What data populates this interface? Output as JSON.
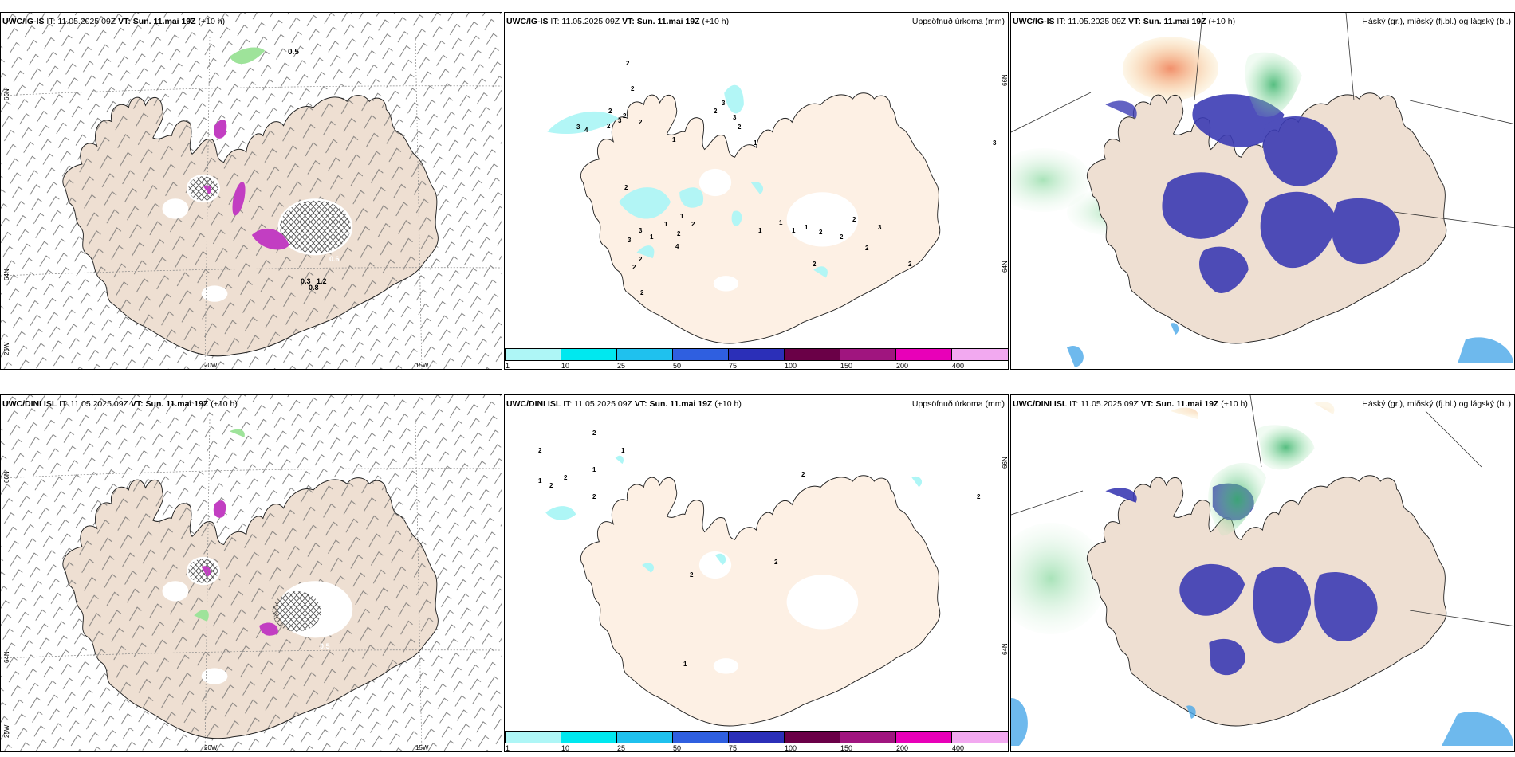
{
  "panels": {
    "ig_wind": {
      "model": "UWC/IG-IS",
      "it": "IT: 11.05.2025 09Z",
      "vt": "VT: Sun. 11.mai 19Z",
      "lead": "(+10 h)",
      "title": ""
    },
    "ig_precip": {
      "model": "UWC/IG-IS",
      "it": "IT: 11.05.2025 09Z",
      "vt": "VT: Sun. 11.mai 19Z",
      "lead": "(+10 h)",
      "title": "Uppsöfnuð úrkoma (mm)"
    },
    "ig_cloud": {
      "model": "UWC/IG-IS",
      "it": "IT: 11.05.2025 09Z",
      "vt": "VT: Sun. 11.mai 19Z",
      "lead": "(+10 h)",
      "title": "Háský (gr.), miðský (fj.bl.) og lágský (bl.)"
    },
    "dini_wind": {
      "model": "UWC/DINI ISL",
      "it": "IT: 11.05.2025 09Z",
      "vt": "VT: Sun. 11.mai 19Z",
      "lead": "(+10 h)",
      "title": ""
    },
    "dini_precip": {
      "model": "UWC/DINI ISL",
      "it": "IT: 11.05.2025 09Z",
      "vt": "VT: Sun. 11.mai 19Z",
      "lead": "(+10 h)",
      "title": "Uppsöfnuð úrkoma (mm)"
    },
    "dini_cloud": {
      "model": "UWC/DINI ISL",
      "it": "IT: 11.05.2025 09Z",
      "vt": "VT: Sun. 11.mai 19Z",
      "lead": "(+10 h)",
      "title": "Háský (gr.), miðský (fj.bl.) og lágský (bl.)"
    }
  },
  "grid_labels": {
    "lat66": "66N",
    "lat64": "64N",
    "lon20": "20W",
    "lon15": "15W",
    "lon25": "25W"
  },
  "ig_wind_values": [
    "0.5",
    "0.3",
    "0.8",
    "1.2",
    "0.6"
  ],
  "dini_wind_values": [
    "0.5"
  ],
  "colorbar": {
    "ticks": [
      "1",
      "10",
      "25",
      "50",
      "75",
      "100",
      "150",
      "200",
      "400"
    ],
    "colors": [
      "#aef6f6",
      "#00e8ef",
      "#1fc1ee",
      "#2f5fe0",
      "#2b2fb8",
      "#6a0047",
      "#a0157f",
      "#e800b8",
      "#f2a9f0"
    ]
  },
  "ig_precip_values": [
    "2",
    "2",
    "2",
    "2",
    "3",
    "4",
    "2",
    "3",
    "2",
    "1",
    "2",
    "3",
    "3",
    "2",
    "1",
    "2",
    "1",
    "1",
    "2",
    "2",
    "3",
    "1",
    "4",
    "3",
    "2",
    "2",
    "2",
    "1",
    "1",
    "1",
    "1",
    "2",
    "2",
    "2",
    "3",
    "2",
    "2",
    "2",
    "3"
  ],
  "dini_precip_values": [
    "2",
    "1",
    "2",
    "2",
    "2",
    "1",
    "2",
    "1",
    "2",
    "2",
    "2",
    "1",
    "2"
  ],
  "colors": {
    "land": "#eedfd2",
    "precip_land": "#fdf0e4",
    "glacier": "#ffffff",
    "cloud_low": "#3c3cb4",
    "cloud_high": "#38b26a"
  }
}
